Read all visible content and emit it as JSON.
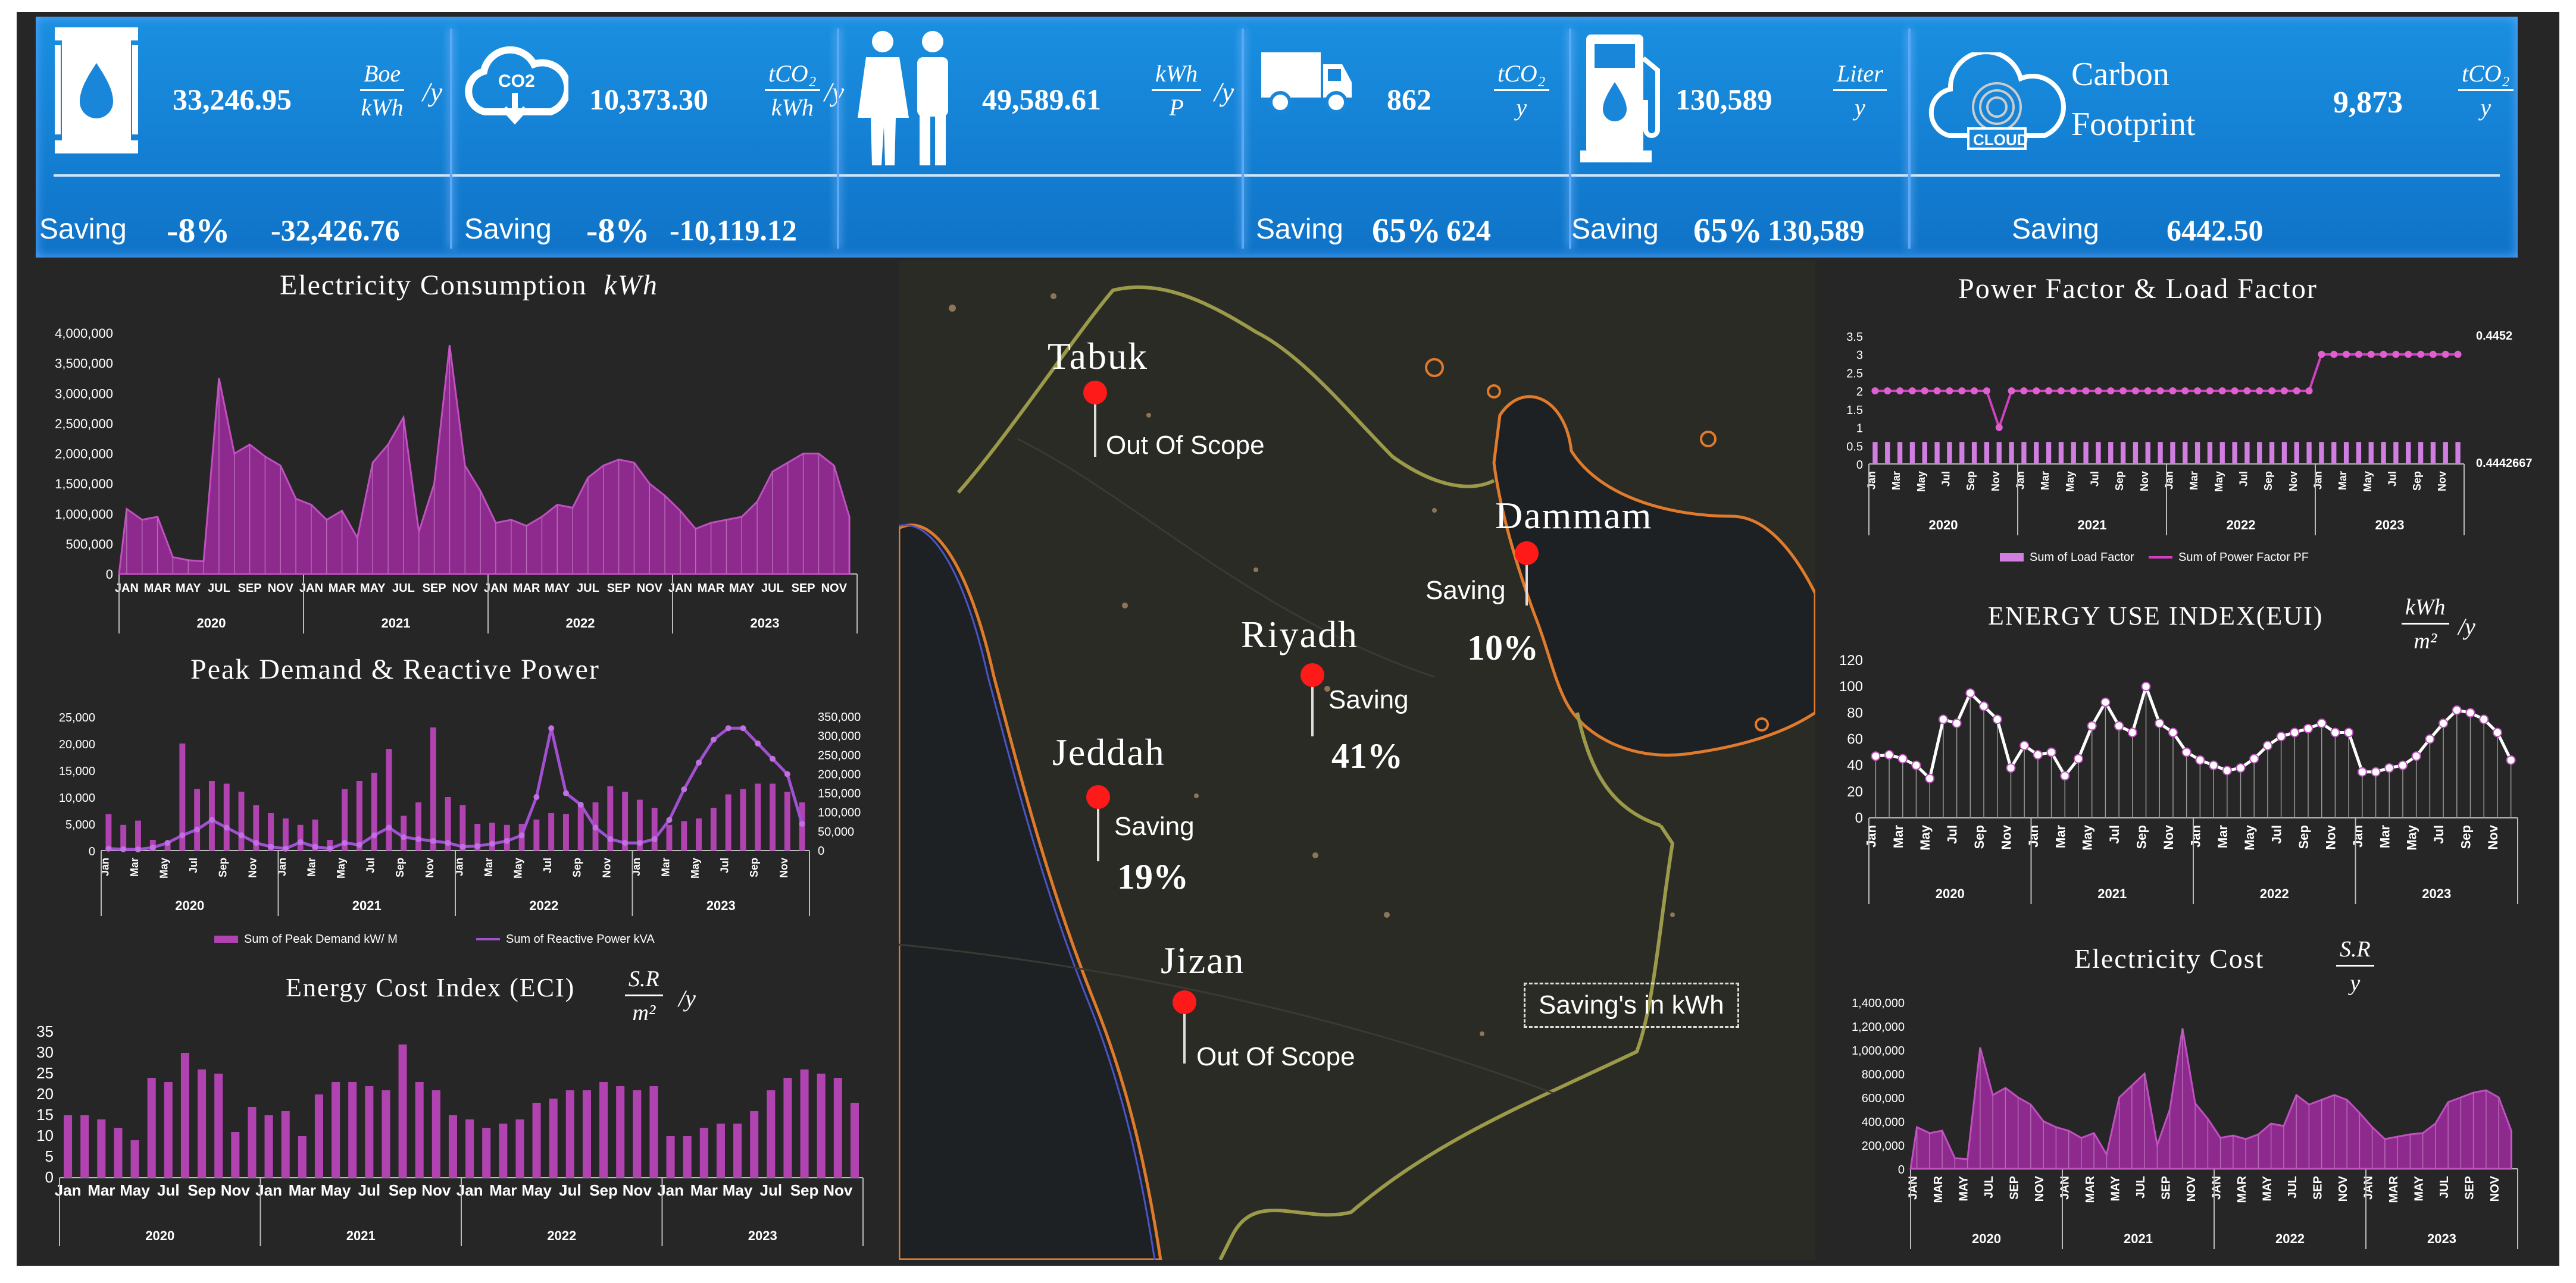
{
  "kpis": {
    "oil": {
      "value": "33,246.95",
      "unit_num": "Boe",
      "unit_den": "kWh",
      "per": "/y",
      "saving_label": "Saving",
      "saving_pct": "-8%",
      "saving_value": "-32,426.76",
      "icon": "oil-barrel-icon"
    },
    "co2": {
      "value": "10,373.30",
      "unit_num": "tCO₂",
      "unit_den": "kWh",
      "per": "/y",
      "saving_label": "Saving",
      "saving_pct": "-8%",
      "saving_value": "-10,119.12",
      "icon": "co2-cloud-icon"
    },
    "people": {
      "value": "49,589.61",
      "unit_num": "kWh",
      "unit_den": "P",
      "per": "/y",
      "icon": "people-icon"
    },
    "truck": {
      "value": "862",
      "unit_num": "tCO₂",
      "unit_den": "y",
      "saving_label": "Saving",
      "saving_pct": "65%",
      "saving_value": "624",
      "icon": "truck-icon"
    },
    "fuel": {
      "value": "130,589",
      "unit_num": "Liter",
      "unit_den": "y",
      "saving_label": "Saving",
      "saving_pct": "65%",
      "saving_value": "130,589",
      "icon": "fuel-pump-icon"
    },
    "carbon": {
      "title_line1": "Carbon",
      "title_line2": "Footprint",
      "value": "9,873",
      "unit_num": "tCO₂",
      "unit_den": "y",
      "saving_label": "Saving",
      "saving_value": "6442.50",
      "icon": "cloud-fingerprint-icon",
      "cloud_text": "CLOUD"
    }
  },
  "panels": {
    "electricity_consumption": {
      "title": "Electricity Consumption",
      "unit": "kWh"
    },
    "peak_demand": {
      "title": "Peak Demand & Reactive Power"
    },
    "eci": {
      "title": "Energy Cost Index (ECI)",
      "unit_num": "S.R",
      "unit_den": "m²",
      "per": "/y"
    },
    "pf_lf": {
      "title": "Power Factor & Load Factor"
    },
    "eui": {
      "title": "ENERGY USE INDEX(EUI)",
      "unit_num": "kWh",
      "unit_den": "m²",
      "per": "/y"
    },
    "elec_cost": {
      "title": "Electricity Cost",
      "unit_num": "S.R",
      "unit_den": "y"
    }
  },
  "map": {
    "cities": [
      {
        "name": "Tabuk",
        "label": "Out Of Scope",
        "pct": ""
      },
      {
        "name": "Dammam",
        "label": "Saving",
        "pct": "10%"
      },
      {
        "name": "Riyadh",
        "label": "Saving",
        "pct": "41%"
      },
      {
        "name": "Jeddah",
        "label": "Saving",
        "pct": "19%"
      },
      {
        "name": "Jizan",
        "label": "Out Of Scope",
        "pct": ""
      }
    ],
    "note": "Saving's in kWh"
  },
  "chart_data": [
    {
      "type": "area",
      "id": "elec",
      "title": "Electricity Consumption",
      "ylabel": "kWh",
      "years": [
        "2020",
        "2021",
        "2022",
        "2023"
      ],
      "months_short": [
        "JAN",
        "MAR",
        "MAY",
        "JUL",
        "SEP",
        "NOV"
      ],
      "yticks": [
        "0",
        "500,000",
        "1,000,000",
        "1,500,000",
        "2,000,000",
        "2,500,000",
        "3,000,000",
        "3,500,000",
        "4,000,000"
      ],
      "ylim": [
        0,
        4000000
      ],
      "values": [
        1080000,
        900000,
        950000,
        280000,
        230000,
        210000,
        3250000,
        2000000,
        2150000,
        1950000,
        1800000,
        1250000,
        1150000,
        900000,
        1050000,
        600000,
        1850000,
        2150000,
        2600000,
        700000,
        1500000,
        3800000,
        1800000,
        1380000,
        850000,
        900000,
        800000,
        950000,
        1150000,
        1100000,
        1600000,
        1800000,
        1900000,
        1850000,
        1500000,
        1300000,
        1050000,
        750000,
        850000,
        900000,
        950000,
        1200000,
        1700000,
        1850000,
        2000000,
        2000000,
        1800000,
        950000
      ]
    },
    {
      "type": "bar+line",
      "id": "peak",
      "title": "Peak Demand & Reactive Power",
      "years": [
        "2020",
        "2021",
        "2022",
        "2023"
      ],
      "months_short": [
        "Jan",
        "Mar",
        "May",
        "Jul",
        "Sep",
        "Nov"
      ],
      "yticks_left": [
        "0",
        "5,000",
        "10,000",
        "15,000",
        "20,000",
        "25,000"
      ],
      "yticks_right": [
        "0",
        "50,000",
        "100,000",
        "150,000",
        "200,000",
        "250,000",
        "300,000",
        "350,000"
      ],
      "ylim_left": [
        0,
        25000
      ],
      "ylim_right": [
        0,
        350000
      ],
      "legend": [
        "Sum of Peak Demand kW/ M",
        "Sum of Reactive Power kVA"
      ],
      "series": [
        {
          "name": "Sum of Peak Demand kW/ M",
          "values": [
            6800,
            4800,
            5600,
            2000,
            1200,
            20000,
            11500,
            13000,
            12500,
            11000,
            8500,
            7000,
            6000,
            4800,
            5800,
            2000,
            11500,
            13000,
            14500,
            19000,
            6500,
            9000,
            23000,
            10000,
            8500,
            5000,
            5200,
            4800,
            5000,
            5800,
            7000,
            6800,
            8500,
            9000,
            12000,
            11000,
            9500,
            8000,
            4800,
            5500,
            6000,
            8000,
            10500,
            11500,
            12500,
            12500,
            11000,
            9000
          ]
        },
        {
          "name": "Sum of Reactive Power kVA",
          "values": [
            5000,
            3500,
            3000,
            8000,
            20000,
            40000,
            55000,
            80000,
            60000,
            40000,
            20000,
            10000,
            5000,
            22000,
            10000,
            5000,
            20000,
            15000,
            40000,
            60000,
            35000,
            30000,
            25000,
            20000,
            10000,
            12000,
            18000,
            25000,
            40000,
            140000,
            320000,
            150000,
            120000,
            60000,
            30000,
            20000,
            20000,
            30000,
            80000,
            160000,
            230000,
            290000,
            320000,
            320000,
            280000,
            240000,
            200000,
            70000
          ]
        }
      ]
    },
    {
      "type": "bar",
      "id": "eci",
      "title": "Energy Cost Index (ECI)",
      "years": [
        "2020",
        "2021",
        "2022",
        "2023"
      ],
      "months_short": [
        "Jan",
        "Mar",
        "May",
        "Jul",
        "Sep",
        "Nov"
      ],
      "yticks": [
        "0",
        "5",
        "10",
        "15",
        "20",
        "25",
        "30",
        "35"
      ],
      "ylim": [
        0,
        35
      ],
      "values": [
        15,
        15,
        14,
        12,
        9,
        24,
        23,
        30,
        26,
        25,
        11,
        17,
        15,
        16,
        10,
        20,
        23,
        23,
        22,
        21,
        32,
        23,
        21,
        15,
        14,
        12,
        13,
        14,
        18,
        19,
        21,
        21,
        23,
        22,
        21,
        22,
        10,
        10,
        12,
        13,
        13,
        16,
        21,
        24,
        26,
        25,
        24,
        18
      ]
    },
    {
      "type": "bar+line",
      "id": "pf",
      "title": "Power Factor & Load Factor",
      "years": [
        "2020",
        "2021",
        "2022",
        "2023"
      ],
      "months_short": [
        "Jan",
        "Mar",
        "May",
        "Jul",
        "Sep",
        "Nov"
      ],
      "yticks": [
        "0",
        "0.5",
        "1",
        "1.5",
        "2",
        "2.5",
        "3",
        "3.5"
      ],
      "ylim": [
        0,
        3.5
      ],
      "right_labels": [
        "0.4452",
        "0.4442667"
      ],
      "legend": [
        "Sum of Load Factor",
        "Sum of Power Factor PF"
      ],
      "series": [
        {
          "name": "Sum of Load Factor",
          "values": [
            0.6,
            0.6,
            0.6,
            0.6,
            0.6,
            0.6,
            0.6,
            0.6,
            0.6,
            0.6,
            0.6,
            0.6,
            0.6,
            0.6,
            0.6,
            0.6,
            0.6,
            0.6,
            0.6,
            0.6,
            0.6,
            0.6,
            0.6,
            0.6,
            0.6,
            0.6,
            0.6,
            0.6,
            0.6,
            0.6,
            0.6,
            0.6,
            0.6,
            0.6,
            0.6,
            0.6,
            0.6,
            0.6,
            0.6,
            0.6,
            0.6,
            0.6,
            0.6,
            0.6,
            0.6,
            0.6,
            0.6,
            0.6
          ]
        },
        {
          "name": "Sum of Power Factor PF",
          "values": [
            2,
            2,
            2,
            2,
            2,
            2,
            2,
            2,
            2,
            2,
            1,
            2,
            2,
            2,
            2,
            2,
            2,
            2,
            2,
            2,
            2,
            2,
            2,
            2,
            2,
            2,
            2,
            2,
            2,
            2,
            2,
            2,
            2,
            2,
            2,
            2,
            3,
            3,
            3,
            3,
            3,
            3,
            3,
            3,
            3,
            3,
            3,
            3
          ]
        }
      ]
    },
    {
      "type": "line",
      "id": "eui",
      "title": "ENERGY USE INDEX(EUI)",
      "years": [
        "2020",
        "2021",
        "2022",
        "2023"
      ],
      "months_short": [
        "Jan",
        "Mar",
        "May",
        "Jul",
        "Sep",
        "Nov"
      ],
      "yticks": [
        "0",
        "20",
        "40",
        "60",
        "80",
        "100",
        "120"
      ],
      "ylim": [
        0,
        120
      ],
      "values": [
        47,
        48,
        45,
        40,
        30,
        75,
        72,
        95,
        85,
        75,
        38,
        55,
        48,
        50,
        32,
        45,
        70,
        88,
        70,
        65,
        100,
        72,
        65,
        50,
        44,
        40,
        36,
        38,
        45,
        55,
        62,
        65,
        68,
        72,
        65,
        65,
        35,
        35,
        38,
        40,
        47,
        60,
        72,
        82,
        80,
        75,
        65,
        44
      ]
    },
    {
      "type": "area",
      "id": "cost",
      "title": "Electricity Cost",
      "ylabel": "S.R/y",
      "years": [
        "2020",
        "2021",
        "2022",
        "2023"
      ],
      "months_short": [
        "JAN",
        "MAR",
        "MAY",
        "JUL",
        "SEP",
        "NOV"
      ],
      "yticks": [
        "0",
        "200,000",
        "400,000",
        "600,000",
        "800,000",
        "1,000,000",
        "1,200,000",
        "1,400,000"
      ],
      "ylim": [
        0,
        1400000
      ],
      "values": [
        350000,
        300000,
        320000,
        90000,
        80000,
        1020000,
        620000,
        680000,
        600000,
        540000,
        400000,
        350000,
        320000,
        260000,
        300000,
        120000,
        600000,
        700000,
        800000,
        200000,
        500000,
        1180000,
        550000,
        420000,
        260000,
        280000,
        250000,
        290000,
        380000,
        360000,
        620000,
        540000,
        580000,
        620000,
        580000,
        470000,
        350000,
        250000,
        270000,
        290000,
        300000,
        380000,
        560000,
        600000,
        640000,
        660000,
        600000,
        320000
      ]
    }
  ]
}
